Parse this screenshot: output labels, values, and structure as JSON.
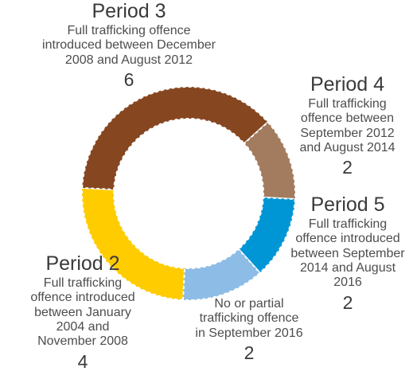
{
  "chart_data": {
    "type": "pie",
    "style": "donut",
    "slices": [
      {
        "label": "Period 2",
        "description": "Full trafficking\noffence introduced\nbetween January\n2004 and\nNovember 2008",
        "value": 4,
        "color": "#FFCC00"
      },
      {
        "label": "Period 3",
        "description": "Full trafficking offence\nintroduced between December\n2008 and August 2012",
        "value": 6,
        "color": "#864620"
      },
      {
        "label": "Period 4",
        "description": "Full trafficking\noffence between\nSeptember 2012\nand August 2014",
        "value": 2,
        "color": "#A37B5F"
      },
      {
        "label": "Period 5",
        "description": "Full trafficking\noffence introduced\nbetween September\n2014 and August\n2016",
        "value": 2,
        "color": "#0096D6"
      },
      {
        "label": "",
        "description": "No or partial\ntrafficking offence\nin September 2016",
        "value": 2,
        "color": "#8DBDE6"
      }
    ]
  }
}
